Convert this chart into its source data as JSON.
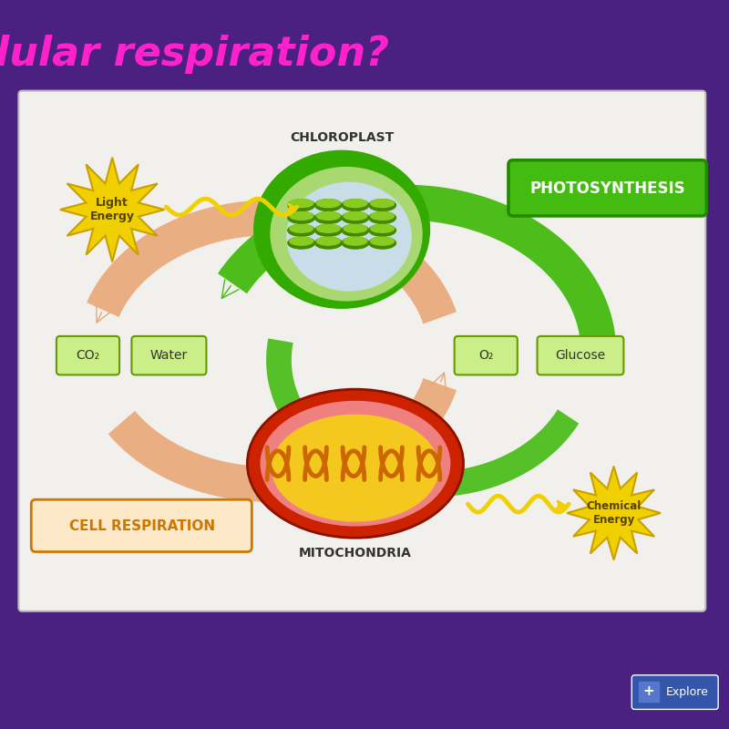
{
  "bg_color": "#4a2080",
  "panel_bg": "#f2f0ec",
  "panel_edge": "#bbbbbb",
  "title_text": "lular respiration?",
  "title_color": "#ff22cc",
  "title_fontsize": 32,
  "chloroplast_label": "CHLOROPLAST",
  "mitochondria_label": "MITOCHONDRIA",
  "photosynthesis_label": "PHOTOSYNTHESIS",
  "cell_respiration_label": "CELL RESPIRATION",
  "light_energy_label": "Light\nEnergy",
  "chemical_energy_label": "Chemical\nEnergy",
  "co2_label": "CO₂",
  "water_label": "Water",
  "o2_label": "O₂",
  "glucose_label": "Glucose",
  "arrow_orange": "#e8a878",
  "arrow_green": "#44bb11",
  "arrow_green_dark": "#228800",
  "star_yellow": "#f0d000",
  "star_border": "#c8a000",
  "box_green_bg": "#44bb11",
  "box_green_border": "#228800",
  "box_tan_bg": "#fde8c8",
  "box_tan_border": "#cc7700",
  "box_small_bg": "#ccee88",
  "box_small_border": "#669900",
  "chloro_outer": "#33aa00",
  "chloro_mid": "#aad870",
  "chloro_inner_blue": "#c8dde8",
  "chloro_disc": "#88cc22",
  "chloro_disc_dark": "#448800",
  "mito_outer": "#cc2200",
  "mito_inner": "#f5c820",
  "mito_cristae": "#cc6600",
  "explore_bg": "#3355aa",
  "explore_text": "Explore"
}
